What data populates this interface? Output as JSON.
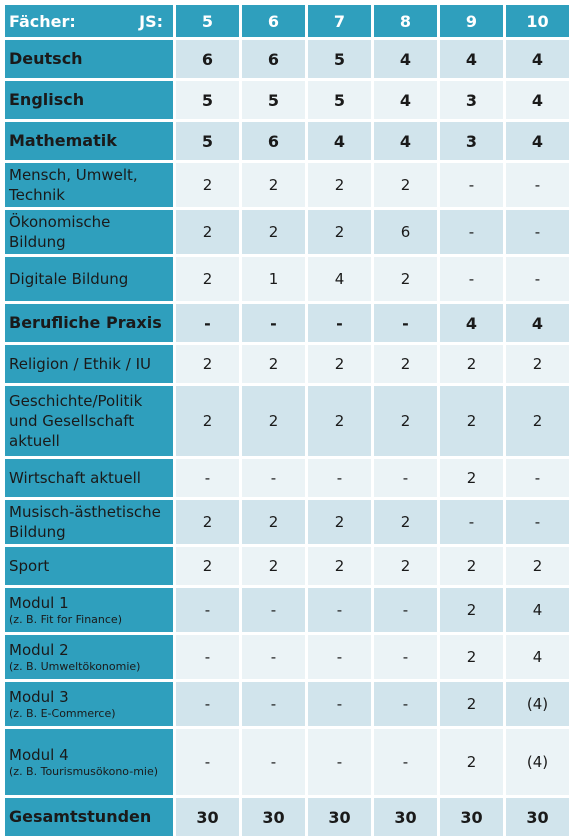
{
  "header": {
    "subject_label": "Fächer:",
    "year_label": "JS:",
    "years": [
      "5",
      "6",
      "7",
      "8",
      "9",
      "10"
    ]
  },
  "rows": [
    {
      "subject": "Deutsch",
      "sub": "",
      "bold": true,
      "values": [
        "6",
        "6",
        "5",
        "4",
        "4",
        "4"
      ]
    },
    {
      "subject": "Englisch",
      "sub": "",
      "bold": true,
      "values": [
        "5",
        "5",
        "5",
        "4",
        "3",
        "4"
      ]
    },
    {
      "subject": "Mathematik",
      "sub": "",
      "bold": true,
      "values": [
        "5",
        "6",
        "4",
        "4",
        "3",
        "4"
      ]
    },
    {
      "subject": "Mensch, Umwelt, Technik",
      "sub": "",
      "bold": false,
      "values": [
        "2",
        "2",
        "2",
        "2",
        "-",
        "-"
      ]
    },
    {
      "subject": "Ökonomische Bildung",
      "sub": "",
      "bold": false,
      "values": [
        "2",
        "2",
        "2",
        "6",
        "-",
        "-"
      ]
    },
    {
      "subject": "Digitale Bildung",
      "sub": "",
      "bold": false,
      "values": [
        "2",
        "1",
        "4",
        "2",
        "-",
        "-"
      ]
    },
    {
      "subject": "Berufliche Praxis",
      "sub": "",
      "bold": true,
      "values": [
        "-",
        "-",
        "-",
        "-",
        "4",
        "4"
      ]
    },
    {
      "subject": "Religion / Ethik / IU",
      "sub": "",
      "bold": false,
      "values": [
        "2",
        "2",
        "2",
        "2",
        "2",
        "2"
      ]
    },
    {
      "subject": "Geschichte/Politik und Gesellschaft aktuell",
      "sub": "",
      "bold": false,
      "values": [
        "2",
        "2",
        "2",
        "2",
        "2",
        "2"
      ]
    },
    {
      "subject": "Wirtschaft aktuell",
      "sub": "",
      "bold": false,
      "values": [
        "-",
        "-",
        "-",
        "-",
        "2",
        "-"
      ]
    },
    {
      "subject": "Musisch-ästhetische Bildung",
      "sub": "",
      "bold": false,
      "values": [
        "2",
        "2",
        "2",
        "2",
        "-",
        "-"
      ]
    },
    {
      "subject": "Sport",
      "sub": "",
      "bold": false,
      "values": [
        "2",
        "2",
        "2",
        "2",
        "2",
        "2"
      ]
    },
    {
      "subject": "Modul 1",
      "sub": "(z. B. Fit for Finance)",
      "bold": false,
      "values": [
        "-",
        "-",
        "-",
        "-",
        "2",
        "4"
      ]
    },
    {
      "subject": "Modul 2",
      "sub": "(z. B. Umweltökonomie)",
      "bold": false,
      "values": [
        "-",
        "-",
        "-",
        "-",
        "2",
        "4"
      ]
    },
    {
      "subject": "Modul 3",
      "sub": "(z. B. E-Commerce)",
      "bold": false,
      "values": [
        "-",
        "-",
        "-",
        "-",
        "2",
        "(4)"
      ]
    },
    {
      "subject": "Modul 4",
      "sub": "(z. B. Tourismusökono-mie)",
      "bold": false,
      "values": [
        "-",
        "-",
        "-",
        "-",
        "2",
        "(4)"
      ]
    },
    {
      "subject": "Gesamtstunden",
      "sub": "",
      "bold": true,
      "values": [
        "30",
        "30",
        "30",
        "30",
        "30",
        "30"
      ]
    }
  ],
  "colors": {
    "header": "#2f9fbd",
    "row_odd": "#d1e4ec",
    "row_even": "#ebf3f6"
  }
}
